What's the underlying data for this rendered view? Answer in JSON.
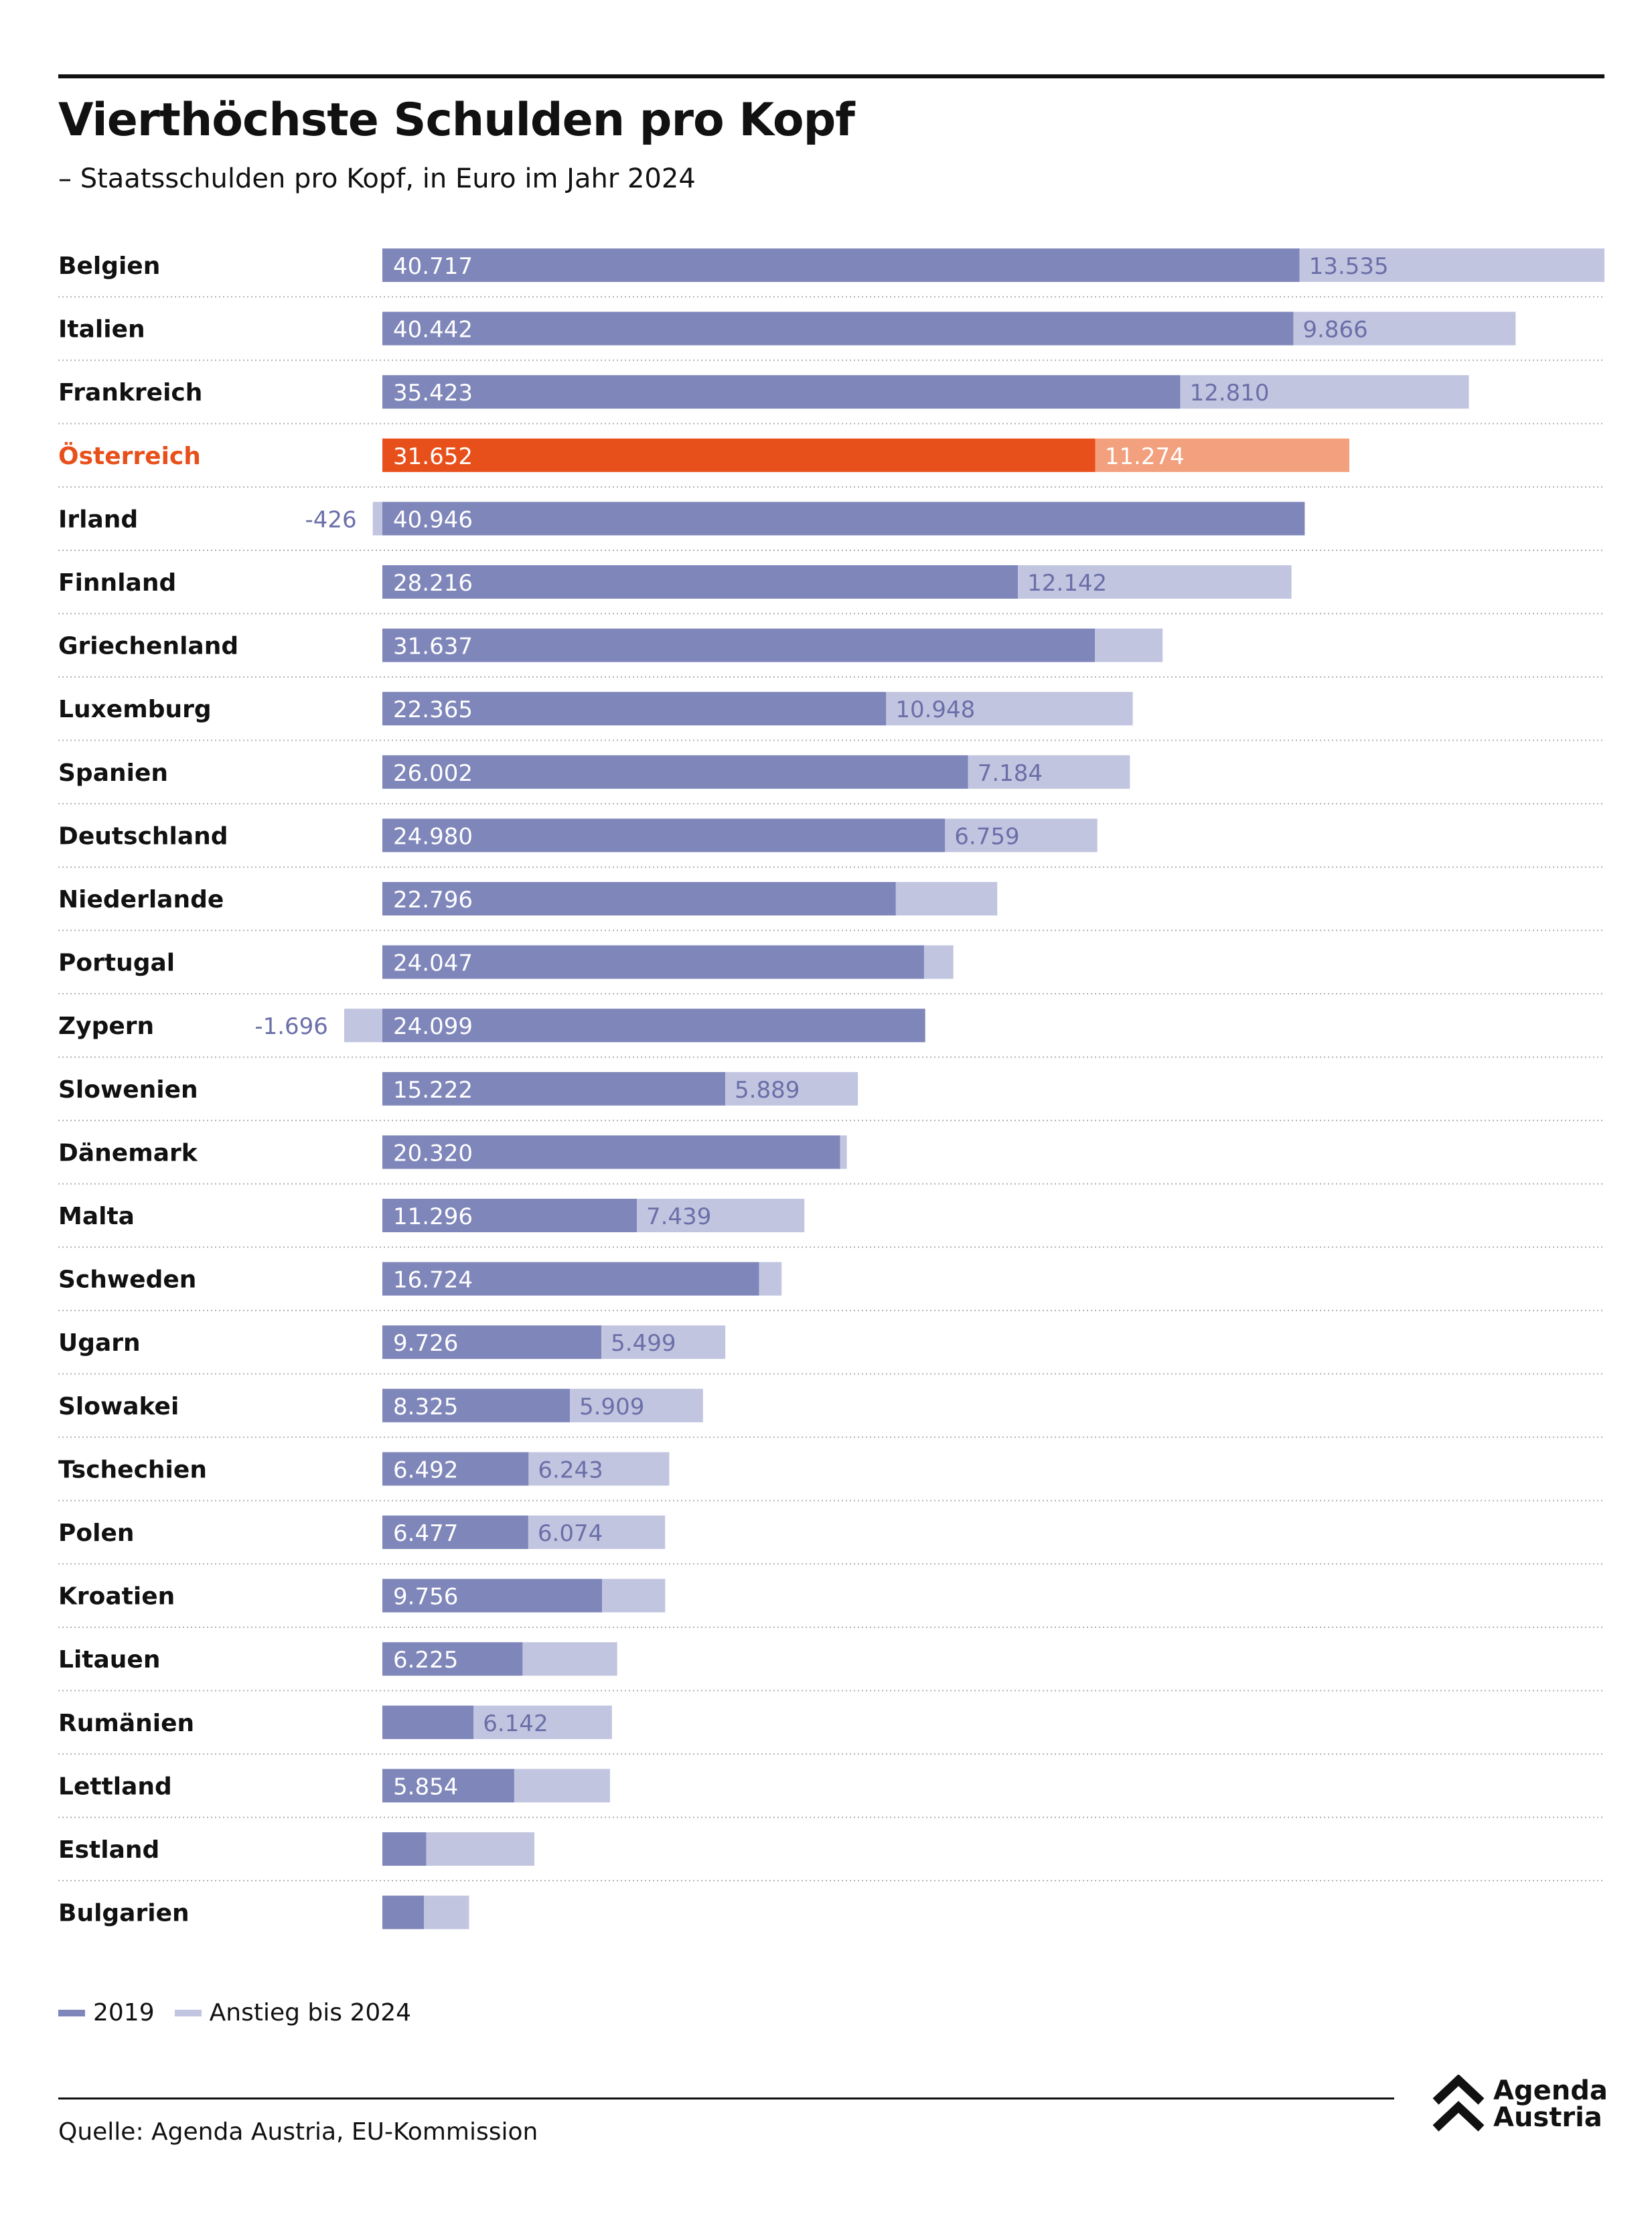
{
  "header": {
    "title": "Vierthöchste Schulden pro Kopf",
    "subtitle": "– Staatsschulden pro Kopf, in Euro im Jahr 2024"
  },
  "colors": {
    "base": "#7f86ba",
    "increase": "#c2c5e0",
    "highlight_base": "#e8501b",
    "highlight_increase": "#f2a07d",
    "highlight_text": "#e8501b",
    "value_label_on_increase": "#6a6fa8"
  },
  "chart_data": {
    "type": "bar",
    "orientation": "horizontal",
    "stacked": true,
    "categories": [
      "Belgien",
      "Italien",
      "Frankreich",
      "Österreich",
      "Irland",
      "Finnland",
      "Griechenland",
      "Luxemburg",
      "Spanien",
      "Deutschland",
      "Niederlande",
      "Portugal",
      "Zypern",
      "Slowenien",
      "Dänemark",
      "Malta",
      "Schweden",
      "Ugarn",
      "Slowakei",
      "Tschechien",
      "Polen",
      "Kroatien",
      "Litauen",
      "Rumänien",
      "Lettland",
      "Estland",
      "Bulgarien"
    ],
    "highlight": "Österreich",
    "series": [
      {
        "name": "2019",
        "values": [
          40717,
          40442,
          35423,
          31652,
          40946,
          28216,
          31637,
          22365,
          26002,
          24980,
          22796,
          24047,
          24099,
          15222,
          20320,
          11296,
          16724,
          9726,
          8325,
          6492,
          6477,
          9756,
          6225,
          4050,
          5854,
          1950,
          1850
        ],
        "labels": [
          "40.717",
          "40.442",
          "35.423",
          "31.652",
          "40.946",
          "28.216",
          "31.637",
          "22.365",
          "26.002",
          "24.980",
          "22.796",
          "24.047",
          "24.099",
          "15.222",
          "20.320",
          "11.296",
          "16.724",
          "9.726",
          "8.325",
          "6.492",
          "6.477",
          "9.756",
          "6.225",
          "",
          "5.854",
          "",
          ""
        ]
      },
      {
        "name": "Anstieg bis 2024",
        "values": [
          13535,
          9866,
          12810,
          11274,
          -426,
          12142,
          3000,
          10948,
          7184,
          6759,
          4500,
          1300,
          -1696,
          5889,
          300,
          7439,
          1000,
          5499,
          5909,
          6243,
          6074,
          2800,
          4200,
          6142,
          4250,
          4800,
          2000
        ],
        "labels": [
          "13.535",
          "9.866",
          "12.810",
          "11.274",
          "-426",
          "12.142",
          "",
          "10.948",
          "7.184",
          "6.759",
          "",
          "",
          "-1.696",
          "5.889",
          "",
          "7.439",
          "",
          "5.499",
          "5.909",
          "6.243",
          "6.074",
          "",
          "",
          "6.142",
          "",
          "",
          ""
        ]
      }
    ],
    "xlim": [
      0,
      54252
    ]
  },
  "legend": {
    "items": [
      {
        "label": "2019"
      },
      {
        "label": "Anstieg bis 2024"
      }
    ]
  },
  "footer": {
    "source": "Quelle: Agenda Austria, EU-Kommission",
    "logo_line1": "Agenda",
    "logo_line2": "Austria"
  }
}
